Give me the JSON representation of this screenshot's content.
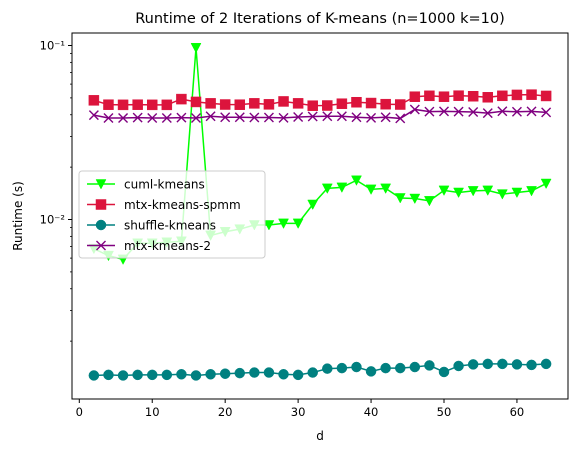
{
  "chart_data": {
    "type": "line",
    "title": "Runtime of 2 Iterations of K-means (n=1000 k=10)",
    "xlabel": "d",
    "ylabel": "Runtime (s)",
    "xlim": [
      -1,
      67
    ],
    "ylim": [
      0.00093,
      0.118
    ],
    "y_scale": "log",
    "grid": false,
    "legend_position": "center-left",
    "x_ticks": [
      0,
      10,
      20,
      30,
      40,
      50,
      60
    ],
    "x_tick_labels": [
      "0",
      "10",
      "20",
      "30",
      "40",
      "50",
      "60"
    ],
    "y_ticks": [
      0.01,
      0.1
    ],
    "y_tick_labels": [
      "10⁻²",
      "10⁻¹"
    ],
    "x": [
      2,
      4,
      6,
      8,
      10,
      12,
      14,
      16,
      18,
      20,
      22,
      24,
      26,
      28,
      30,
      32,
      34,
      36,
      38,
      40,
      42,
      44,
      46,
      48,
      50,
      52,
      54,
      56,
      58,
      60,
      62,
      64
    ],
    "series": [
      {
        "name": "cuml-kmeans",
        "color": "#00ff00",
        "marker": "triangle-down",
        "values": [
          0.0068,
          0.0062,
          0.0059,
          0.0073,
          0.0073,
          0.0074,
          0.0075,
          0.097,
          0.0081,
          0.0085,
          0.0088,
          0.0093,
          0.0093,
          0.0095,
          0.0095,
          0.0122,
          0.0151,
          0.0153,
          0.0168,
          0.0149,
          0.0151,
          0.0133,
          0.0132,
          0.0128,
          0.0147,
          0.0143,
          0.0146,
          0.0147,
          0.014,
          0.0143,
          0.0146,
          0.0161
        ]
      },
      {
        "name": "mtx-kmeans-spmm",
        "color": "#dc143c",
        "marker": "square",
        "values": [
          0.0484,
          0.0457,
          0.0456,
          0.0457,
          0.0456,
          0.0456,
          0.0492,
          0.0474,
          0.0465,
          0.0458,
          0.0457,
          0.0465,
          0.0459,
          0.0477,
          0.0465,
          0.0451,
          0.0452,
          0.0463,
          0.0472,
          0.0467,
          0.046,
          0.0458,
          0.0508,
          0.0514,
          0.0508,
          0.0515,
          0.0511,
          0.0504,
          0.0514,
          0.052,
          0.0522,
          0.0513
        ]
      },
      {
        "name": "shuffle-kmeans",
        "color": "#008080",
        "marker": "circle",
        "values": [
          0.00127,
          0.00128,
          0.00127,
          0.00128,
          0.00128,
          0.00128,
          0.00129,
          0.00127,
          0.00129,
          0.0013,
          0.00131,
          0.00132,
          0.00132,
          0.00129,
          0.00128,
          0.00132,
          0.00139,
          0.0014,
          0.00142,
          0.00134,
          0.0014,
          0.0014,
          0.00142,
          0.00145,
          0.00133,
          0.00144,
          0.00147,
          0.00148,
          0.00148,
          0.00147,
          0.00146,
          0.00148
        ]
      },
      {
        "name": "mtx-kmeans-2",
        "color": "#800080",
        "marker": "x",
        "values": [
          0.0398,
          0.0383,
          0.0383,
          0.0385,
          0.0383,
          0.0383,
          0.0385,
          0.0383,
          0.0392,
          0.0387,
          0.0387,
          0.0386,
          0.0386,
          0.0384,
          0.0388,
          0.0391,
          0.0392,
          0.0392,
          0.0387,
          0.0384,
          0.0387,
          0.0381,
          0.0429,
          0.0417,
          0.0418,
          0.0417,
          0.0415,
          0.0409,
          0.0419,
          0.0416,
          0.0418,
          0.0413
        ]
      }
    ]
  }
}
